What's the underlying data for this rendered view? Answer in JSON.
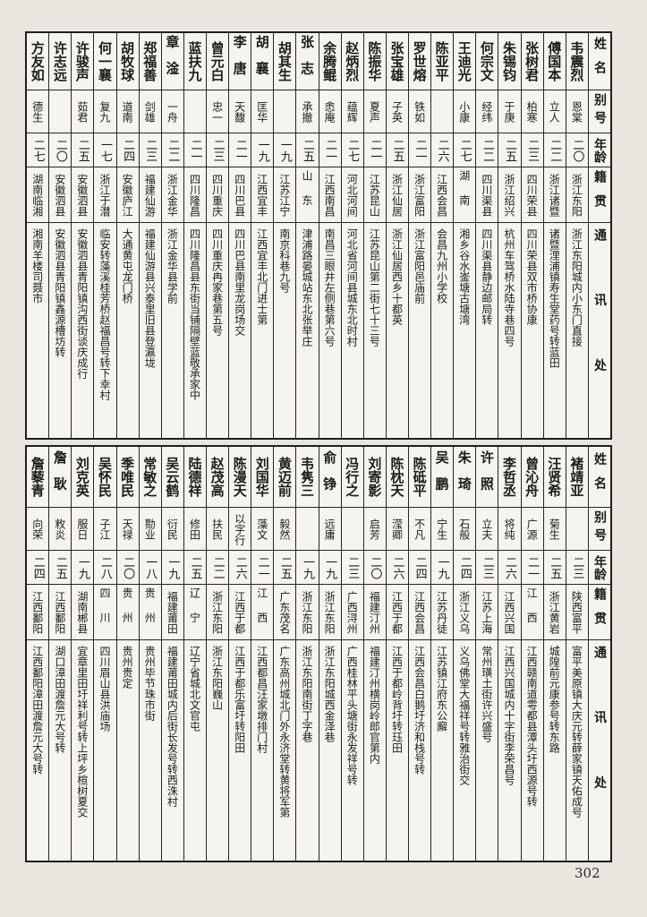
{
  "page": {
    "number": "302"
  },
  "headers": {
    "name": "姓名",
    "alias": "别号",
    "age": "年龄",
    "origin": "籍贯",
    "address": "通讯处"
  },
  "top_table": {
    "entries": [
      {
        "name": "韦震烈",
        "alias": "恩棠",
        "age": "二〇",
        "origin": "浙江东阳",
        "address": "浙江东阳城内小东门直接"
      },
      {
        "name": "傅国本",
        "alias": "立人",
        "age": "二二",
        "origin": "浙江诸暨",
        "address": "诸暨浬浦镇寿生堂药号转蓝田"
      },
      {
        "name": "张树君",
        "alias": "柏寒",
        "age": "二三",
        "origin": "四川荣县",
        "address": "四川荣县双市桥协康"
      },
      {
        "name": "朱锡钧",
        "alias": "于庚",
        "age": "二五",
        "origin": "浙江绍兴",
        "address": "杭州车驾桥水陆寺巷四号"
      },
      {
        "name": "何宗文",
        "alias": "经纬",
        "age": "二二",
        "origin": "四川渠县",
        "address": "四川渠县静边邮局转"
      },
      {
        "name": "王迪光",
        "alias": "小康",
        "age": "二七",
        "origin": "湖南",
        "address": "湘乡谷水崟塘古塘湾"
      },
      {
        "name": "陈亚平",
        "alias": "",
        "age": "二六",
        "origin": "江西会昌",
        "address": "会昌九州小学校"
      },
      {
        "name": "罗世熔",
        "alias": "铁如",
        "age": "二一",
        "origin": "浙江富阳",
        "address": "浙江富阳邑庙前"
      },
      {
        "name": "张宝雄",
        "alias": "子英",
        "age": "二五",
        "origin": "浙江仙居",
        "address": "浙江仙居西乡十都英"
      },
      {
        "name": "陈振华",
        "alias": "夏声",
        "age": "二一",
        "origin": "江苏昆山",
        "address": "江苏昆山第二街七十三号"
      },
      {
        "name": "赵炳烈",
        "alias": "蕴辉",
        "age": "二七",
        "origin": "河北河间",
        "address": "河北省河间县城东北时村"
      },
      {
        "name": "余腾鲲",
        "alias": "悆庵",
        "age": "二一",
        "origin": "江西南昌",
        "address": "南昌三眼井左侧巷第六号"
      },
      {
        "name": "张志",
        "alias": "承撤",
        "age": "二五",
        "origin": "山东",
        "address": "津浦路晏城站东北张举庄"
      },
      {
        "name": "胡其生",
        "alias": "",
        "age": "一九",
        "origin": "江苏江宁",
        "address": "南京科巷九号"
      },
      {
        "name": "胡襄",
        "alias": "匡华",
        "age": "一九",
        "origin": "江西宜丰",
        "address": "江西宜丰北门进士第"
      },
      {
        "name": "李唐",
        "alias": "天馥",
        "age": "二一",
        "origin": "四川巴县",
        "address": "四川巴县南里龙岗场交"
      },
      {
        "name": "曾元白",
        "alias": "忠一",
        "age": "二三",
        "origin": "四川重庆",
        "address": "四川重庆冉家巷第五号"
      },
      {
        "name": "蓝扶九",
        "alias": "",
        "age": "二一",
        "origin": "四川隆昌",
        "address": "四川隆昌县东街当铺隔壁蓝敬承家中"
      },
      {
        "name": "章淦",
        "alias": "一舟",
        "age": "二二",
        "origin": "浙江金华",
        "address": "浙江金华县学前"
      },
      {
        "name": "郑福善",
        "alias": "剑雄",
        "age": "二三",
        "origin": "福建仙游",
        "address": "福建仙游县兴泰里旧县登瀛垅"
      },
      {
        "name": "胡牧球",
        "alias": "道南",
        "age": "二四",
        "origin": "安徽庐江",
        "address": "大通黄屯龙门桥"
      },
      {
        "name": "何一襄",
        "alias": "复九",
        "age": "一七",
        "origin": "浙江于潜",
        "address": "临安转藻溪桂芳桥赵福昌号转下幸村"
      },
      {
        "name": "许骏声",
        "alias": "茹君",
        "age": "二五",
        "origin": "安徽泗县",
        "address": "安徽泗县青阳镇沟西街谈庆成行"
      },
      {
        "name": "许志远",
        "alias": "",
        "age": "二〇",
        "origin": "安徽泗县",
        "address": "安徽泗县青阳镇鑫源槽坊转"
      },
      {
        "name": "方友如",
        "alias": "德生",
        "age": "二七",
        "origin": "湖南临湘",
        "address": "湘南羊楼司聂市"
      }
    ]
  },
  "bottom_table": {
    "entries": [
      {
        "name": "褚靖亚",
        "alias": "",
        "age": "二三",
        "origin": "陕西富平",
        "address": "富平美原镇大庆元转薛家镇天佑成号"
      },
      {
        "name": "汪贤希",
        "alias": "菊生",
        "age": "二五",
        "origin": "浙江黄岩",
        "address": "城隍前元康参号转东路"
      },
      {
        "name": "曾沁舟",
        "alias": "广源",
        "age": "二一",
        "origin": "江西",
        "address": "江西赣南道雩都县潭头圩西源号转"
      },
      {
        "name": "李哲丞",
        "alias": "将纯",
        "age": "二六",
        "origin": "江西兴国",
        "address": "江西兴国城内十字街李荣昌号"
      },
      {
        "name": "许照",
        "alias": "立夫",
        "age": "二三",
        "origin": "江苏上海",
        "address": "常州璜土街许兴盛号"
      },
      {
        "name": "朱琦",
        "alias": "石般",
        "age": "二四",
        "origin": "浙江义乌",
        "address": "义乌佛堂大福祥号转雅治街交"
      },
      {
        "name": "吴鹏",
        "alias": "宁生",
        "age": "一九",
        "origin": "江苏丹徒",
        "address": "江苏镇江府东公廨"
      },
      {
        "name": "陈砥平",
        "alias": "不凡",
        "age": "二四",
        "origin": "江西会昌",
        "address": "江西会昌白鹅圩济和栈号转"
      },
      {
        "name": "陈枕天",
        "alias": "滢卿",
        "age": "二六",
        "origin": "江西于都",
        "address": "江西于都岭背圩转珏田"
      },
      {
        "name": "刘寄影",
        "alias": "启芳",
        "age": "二〇",
        "origin": "福建汀州",
        "address": "福建汀州横岗岭郎官第内"
      },
      {
        "name": "冯行之",
        "alias": "",
        "age": "二三",
        "origin": "广西浔州",
        "address": "广西桂林平头塘街永发祥号转"
      },
      {
        "name": "俞铮",
        "alias": "远庸",
        "age": "一九",
        "origin": "浙江东阳",
        "address": "浙江东阳城西金泽巷"
      },
      {
        "name": "韦隽三",
        "alias": "",
        "age": "一九",
        "origin": "浙江东阳",
        "address": "浙江东阳南街丁字巷"
      },
      {
        "name": "黄迈前",
        "alias": "毅然",
        "age": "二五",
        "origin": "广东茂名",
        "address": "广东高州城北门外永济堂转黄将军第"
      },
      {
        "name": "刘国华",
        "alias": "藻文",
        "age": "二一",
        "origin": "江西",
        "address": "江西都昌汪家墩排门村"
      },
      {
        "name": "陈漫天",
        "alias": "以字行",
        "age": "二六",
        "origin": "江西于都",
        "address": "江西于都乐富圩转阳田"
      },
      {
        "name": "赵茂高",
        "alias": "扶民",
        "age": "二二",
        "origin": "浙江东阳",
        "address": "浙江东阳巍山"
      },
      {
        "name": "陆德祥",
        "alias": "修田",
        "age": "二五",
        "origin": "辽宁",
        "address": "辽宁省城北文官屯"
      },
      {
        "name": "吴云鹤",
        "alias": "衍民",
        "age": "一九",
        "origin": "福建莆田",
        "address": "福建莆田城内后街长发号转西洙村"
      },
      {
        "name": "常敏之",
        "alias": "勚业",
        "age": "一八",
        "origin": "贵州",
        "address": "贵州毕节珠市街"
      },
      {
        "name": "季唯民",
        "alias": "天禄",
        "age": "二〇",
        "origin": "贵州",
        "address": "贵州贵定"
      },
      {
        "name": "吴怀民",
        "alias": "子江",
        "age": "二八",
        "origin": "四川",
        "address": "四川眉山县洪庙场"
      },
      {
        "name": "刘克英",
        "alias": "服日",
        "age": "一九",
        "origin": "湖南郴县",
        "address": "宜章里田圩祥利号转上坪乡楦树夏交"
      },
      {
        "name": "詹耿",
        "alias": "敉炎",
        "age": "二五",
        "origin": "江西鄱阳",
        "address": "湖口漳田渡詹元大号转"
      },
      {
        "name": "詹藜青",
        "alias": "向荣",
        "age": "二四",
        "origin": "江西鄱阳",
        "address": "江西鄱阳漳田渡詹元大号转"
      }
    ]
  }
}
